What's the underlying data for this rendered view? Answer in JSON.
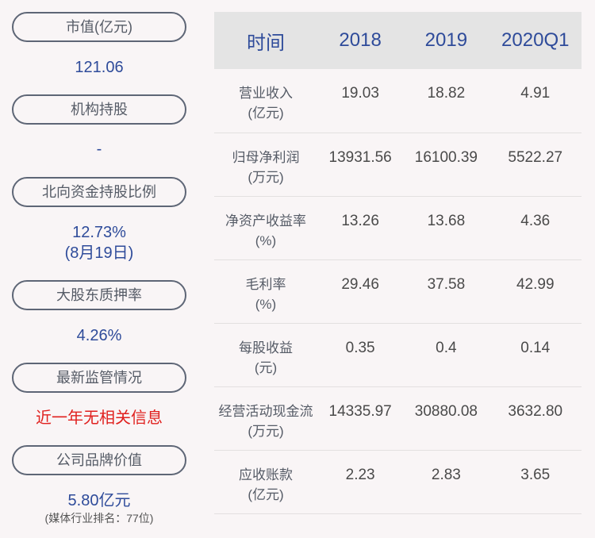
{
  "left": [
    {
      "label": "市值(亿元)",
      "value": "121.06"
    },
    {
      "label": "机构持股",
      "value": "-"
    },
    {
      "label": "北向资金持股比例",
      "value": "12.73%",
      "value2": "(8月19日)"
    },
    {
      "label": "大股东质押率",
      "value": "4.26%"
    },
    {
      "label": "最新监管情况",
      "value": "近一年无相关信息"
    },
    {
      "label": "公司品牌价值",
      "value": "5.80亿元",
      "note": "(媒体行业排名：77位)"
    }
  ],
  "table": {
    "headers": [
      "时间",
      "2018",
      "2019",
      "2020Q1"
    ],
    "rows": [
      {
        "name": "营业收入",
        "unit": "(亿元)",
        "values": [
          "19.03",
          "18.82",
          "4.91"
        ]
      },
      {
        "name": "归母净利润",
        "unit": "(万元)",
        "values": [
          "13931.56",
          "16100.39",
          "5522.27"
        ]
      },
      {
        "name": "净资产收益率",
        "unit": "(%)",
        "values": [
          "13.26",
          "13.68",
          "4.36"
        ]
      },
      {
        "name": "毛利率",
        "unit": "(%)",
        "values": [
          "29.46",
          "37.58",
          "42.99"
        ]
      },
      {
        "name": "每股收益",
        "unit": "(元)",
        "values": [
          "0.35",
          "0.4",
          "0.14"
        ]
      },
      {
        "name": "经营活动现金流",
        "unit": "(万元)",
        "values": [
          "14335.97",
          "30880.08",
          "3632.80"
        ]
      },
      {
        "name": "应收账款",
        "unit": "(亿元)",
        "values": [
          "2.23",
          "2.83",
          "3.65"
        ]
      }
    ]
  }
}
